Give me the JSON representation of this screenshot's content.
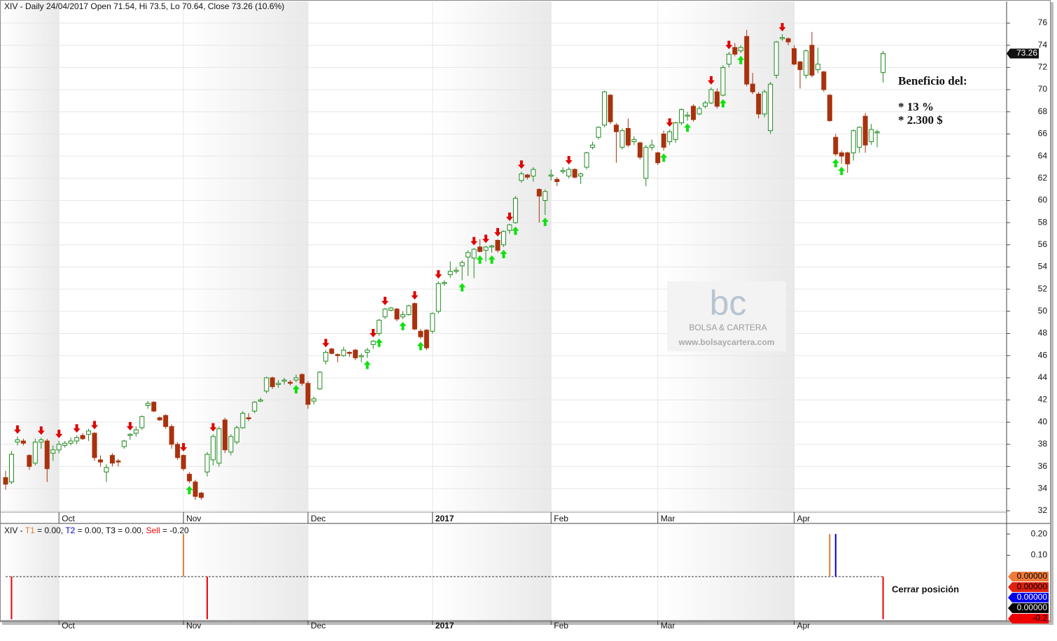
{
  "chart_data": {
    "type": "candlestick",
    "title": "XIV - Daily 24/04/2017 Open 71.54, Hi 73.5, Lo 70.64, Close 73.26 (10.6%)",
    "ylim": [
      30.86,
      77.96
    ],
    "yticks": [
      32,
      34,
      36,
      38,
      40,
      42,
      44,
      46,
      48,
      50,
      52,
      54,
      56,
      58,
      60,
      62,
      64,
      66,
      68,
      70,
      72,
      74,
      76
    ],
    "xticks": [
      {
        "value": 9,
        "label": "Oct"
      },
      {
        "value": 30,
        "label": "Nov"
      },
      {
        "value": 51,
        "label": "Dec"
      },
      {
        "value": 72,
        "label": "2017"
      },
      {
        "value": 92,
        "label": "Feb"
      },
      {
        "value": 110,
        "label": "Mar"
      },
      {
        "value": 133,
        "label": "Apr"
      }
    ],
    "grid": true,
    "up_color": "#1e8a1e",
    "down_color": "#a8320e",
    "ohlc": [
      [
        35.0,
        35.6,
        33.9,
        34.4
      ],
      [
        34.6,
        37.4,
        34.4,
        37.1
      ],
      [
        38.2,
        38.7,
        37.9,
        38.4
      ],
      [
        38.3,
        38.5,
        37.9,
        38.1
      ],
      [
        37.0,
        37.1,
        35.7,
        36.0
      ],
      [
        36.3,
        38.5,
        36.1,
        38.2
      ],
      [
        38.2,
        38.6,
        37.6,
        38.4
      ],
      [
        38.3,
        38.5,
        34.6,
        35.8
      ],
      [
        37.2,
        37.9,
        36.5,
        37.5
      ],
      [
        37.5,
        38.3,
        37.2,
        38.0
      ],
      [
        37.9,
        38.3,
        37.7,
        38.1
      ],
      [
        38.1,
        38.6,
        37.9,
        38.3
      ],
      [
        38.3,
        38.8,
        38.0,
        38.6
      ],
      [
        38.8,
        39.0,
        38.4,
        38.5
      ],
      [
        38.9,
        39.4,
        38.3,
        39.2
      ],
      [
        39.0,
        39.1,
        36.5,
        36.8
      ],
      [
        36.6,
        37.0,
        36.0,
        36.4
      ],
      [
        35.5,
        36.2,
        34.6,
        35.9
      ],
      [
        37.0,
        37.2,
        36.0,
        36.3
      ],
      [
        36.5,
        36.7,
        36.0,
        36.4
      ],
      [
        37.8,
        38.4,
        37.6,
        38.3
      ],
      [
        38.8,
        39.0,
        38.4,
        38.9
      ],
      [
        39.0,
        39.6,
        38.7,
        39.3
      ],
      [
        39.5,
        40.6,
        39.3,
        40.5
      ],
      [
        41.5,
        41.9,
        41.2,
        41.7
      ],
      [
        41.8,
        41.9,
        40.9,
        41.0
      ],
      [
        40.4,
        40.5,
        40.1,
        40.2
      ],
      [
        40.6,
        40.7,
        39.4,
        39.6
      ],
      [
        39.6,
        39.8,
        37.6,
        38.0
      ],
      [
        38.0,
        38.2,
        36.6,
        36.8
      ],
      [
        37.0,
        37.1,
        35.6,
        35.8
      ],
      [
        35.3,
        35.5,
        34.5,
        34.7
      ],
      [
        34.6,
        34.8,
        33.0,
        33.3
      ],
      [
        33.6,
        33.7,
        33.0,
        33.2
      ],
      [
        35.5,
        37.3,
        35.1,
        37.1
      ],
      [
        36.6,
        38.9,
        36.1,
        38.7
      ],
      [
        36.3,
        39.6,
        36.0,
        39.4
      ],
      [
        40.2,
        40.4,
        37.2,
        37.5
      ],
      [
        37.3,
        38.9,
        37.0,
        38.7
      ],
      [
        38.2,
        39.7,
        38.0,
        39.5
      ],
      [
        39.5,
        41.0,
        39.4,
        40.8
      ],
      [
        40.4,
        40.8,
        40.1,
        40.3
      ],
      [
        41.0,
        41.9,
        40.8,
        41.8
      ],
      [
        41.9,
        42.2,
        41.8,
        42.0
      ],
      [
        42.8,
        44.1,
        42.6,
        44.0
      ],
      [
        44.0,
        44.1,
        43.0,
        43.2
      ],
      [
        43.4,
        43.8,
        43.1,
        43.5
      ],
      [
        43.7,
        44.0,
        43.4,
        43.8
      ],
      [
        43.6,
        43.8,
        43.3,
        43.5
      ],
      [
        43.8,
        44.3,
        43.6,
        44.0
      ],
      [
        44.3,
        44.4,
        43.3,
        43.5
      ],
      [
        43.5,
        43.7,
        41.2,
        41.6
      ],
      [
        41.9,
        42.3,
        41.6,
        42.1
      ],
      [
        43.0,
        44.6,
        42.9,
        44.5
      ],
      [
        45.5,
        46.5,
        45.2,
        46.3
      ],
      [
        46.6,
        46.7,
        46.1,
        46.2
      ],
      [
        46.1,
        46.2,
        45.4,
        46.0
      ],
      [
        46.0,
        46.8,
        45.9,
        46.5
      ],
      [
        46.3,
        46.4,
        45.9,
        46.2
      ],
      [
        46.5,
        46.6,
        45.6,
        45.8
      ],
      [
        45.9,
        46.2,
        45.4,
        46.0
      ],
      [
        46.3,
        46.7,
        45.8,
        46.5
      ],
      [
        47.0,
        47.4,
        46.6,
        47.3
      ],
      [
        48.0,
        49.3,
        47.8,
        49.2
      ],
      [
        49.5,
        50.3,
        49.3,
        50.2
      ],
      [
        50.1,
        50.4,
        50.0,
        50.3
      ],
      [
        50.2,
        50.3,
        49.1,
        49.3
      ],
      [
        49.5,
        50.0,
        49.3,
        49.7
      ],
      [
        49.7,
        50.6,
        49.6,
        50.5
      ],
      [
        50.7,
        50.8,
        48.3,
        48.4
      ],
      [
        48.2,
        48.4,
        47.5,
        47.7
      ],
      [
        48.3,
        48.4,
        46.5,
        46.7
      ],
      [
        48.2,
        49.9,
        48.0,
        49.8
      ],
      [
        50.0,
        52.7,
        49.8,
        52.5
      ],
      [
        52.5,
        52.8,
        52.3,
        52.6
      ],
      [
        53.3,
        54.5,
        53.0,
        53.6
      ],
      [
        53.6,
        54.0,
        53.4,
        53.7
      ],
      [
        54.1,
        54.6,
        52.8,
        54.4
      ],
      [
        54.9,
        55.5,
        53.2,
        55.3
      ],
      [
        54.8,
        55.7,
        53.0,
        55.6
      ],
      [
        55.8,
        56.5,
        55.3,
        55.4
      ],
      [
        55.5,
        55.9,
        54.5,
        55.8
      ],
      [
        55.8,
        56.0,
        55.3,
        55.9
      ],
      [
        56.4,
        56.5,
        55.3,
        55.5
      ],
      [
        56.0,
        57.3,
        55.8,
        57.2
      ],
      [
        57.3,
        57.9,
        57.0,
        57.8
      ],
      [
        58.0,
        60.4,
        57.9,
        60.2
      ],
      [
        61.8,
        62.6,
        61.6,
        62.4
      ],
      [
        62.3,
        62.4,
        61.9,
        62.1
      ],
      [
        62.2,
        63.0,
        61.7,
        62.8
      ],
      [
        61.0,
        61.1,
        58.0,
        60.4
      ],
      [
        60.0,
        61.0,
        58.7,
        60.8
      ],
      [
        62.2,
        62.8,
        61.8,
        62.3
      ],
      [
        61.9,
        62.1,
        61.3,
        61.7
      ],
      [
        62.6,
        63.0,
        62.4,
        62.7
      ],
      [
        62.2,
        63.0,
        62.0,
        62.8
      ],
      [
        62.8,
        62.9,
        62.0,
        62.1
      ],
      [
        62.2,
        62.5,
        61.5,
        62.4
      ],
      [
        63.0,
        64.4,
        62.8,
        64.3
      ],
      [
        64.8,
        65.3,
        64.6,
        65.0
      ],
      [
        65.7,
        66.7,
        65.5,
        66.6
      ],
      [
        66.8,
        69.9,
        66.6,
        69.8
      ],
      [
        69.5,
        69.6,
        66.9,
        67.1
      ],
      [
        66.8,
        67.0,
        63.4,
        66.2
      ],
      [
        64.8,
        66.5,
        64.6,
        66.3
      ],
      [
        66.5,
        67.4,
        64.8,
        65.0
      ],
      [
        65.3,
        65.8,
        65.0,
        65.5
      ],
      [
        65.2,
        65.3,
        63.7,
        63.9
      ],
      [
        62.0,
        65.0,
        61.3,
        64.8
      ],
      [
        64.8,
        65.5,
        64.5,
        65.0
      ],
      [
        64.3,
        64.4,
        63.2,
        63.4
      ],
      [
        66.0,
        66.3,
        64.5,
        64.8
      ],
      [
        65.3,
        66.4,
        65.0,
        66.2
      ],
      [
        65.5,
        67.1,
        65.2,
        67.0
      ],
      [
        67.0,
        68.3,
        66.8,
        68.2
      ],
      [
        67.6,
        68.0,
        67.2,
        67.7
      ],
      [
        68.5,
        68.7,
        67.1,
        67.3
      ],
      [
        67.8,
        68.5,
        67.7,
        68.3
      ],
      [
        68.5,
        69.0,
        68.3,
        68.8
      ],
      [
        68.8,
        70.2,
        68.7,
        70.0
      ],
      [
        69.8,
        70.1,
        68.3,
        68.5
      ],
      [
        69.5,
        72.2,
        69.4,
        72.0
      ],
      [
        72.3,
        73.4,
        72.0,
        73.2
      ],
      [
        73.8,
        74.2,
        73.0,
        73.2
      ],
      [
        73.5,
        74.0,
        73.3,
        73.8
      ],
      [
        74.8,
        75.4,
        70.3,
        70.5
      ],
      [
        70.5,
        71.5,
        69.6,
        69.8
      ],
      [
        69.6,
        69.8,
        67.4,
        67.8
      ],
      [
        67.8,
        70.0,
        67.5,
        69.8
      ],
      [
        66.3,
        70.7,
        66.0,
        70.5
      ],
      [
        71.3,
        74.4,
        71.0,
        74.3
      ],
      [
        74.6,
        75.0,
        74.4,
        74.7
      ],
      [
        74.6,
        74.7,
        74.0,
        74.3
      ],
      [
        73.7,
        74.0,
        72.2,
        72.3
      ],
      [
        72.5,
        72.6,
        70.1,
        71.8
      ],
      [
        71.3,
        73.6,
        71.0,
        73.5
      ],
      [
        74.0,
        75.2,
        71.1,
        71.3
      ],
      [
        71.8,
        73.8,
        71.5,
        72.3
      ],
      [
        71.6,
        71.7,
        69.8,
        70.0
      ],
      [
        69.5,
        69.6,
        67.1,
        67.2
      ],
      [
        65.7,
        66.0,
        64.0,
        64.2
      ],
      [
        64.3,
        64.5,
        63.3,
        64.0
      ],
      [
        64.3,
        64.4,
        62.5,
        63.3
      ],
      [
        64.3,
        66.4,
        63.6,
        66.3
      ],
      [
        64.8,
        66.7,
        64.3,
        66.6
      ],
      [
        67.6,
        67.9,
        64.3,
        65.0
      ],
      [
        65.3,
        66.9,
        65.0,
        66.4
      ],
      [
        66.1,
        66.4,
        64.8,
        66.2
      ],
      [
        71.54,
        73.5,
        70.64,
        73.26
      ]
    ],
    "sell_arrows": [
      2,
      6,
      9,
      12,
      15,
      21,
      30,
      35,
      54,
      62,
      64,
      69,
      73,
      79,
      81,
      83,
      85,
      87,
      95,
      112,
      119,
      122,
      131
    ],
    "buy_arrows": [
      31,
      49,
      61,
      63,
      67,
      70,
      77,
      80,
      82,
      84,
      86,
      91,
      111,
      115,
      121,
      124,
      140,
      141
    ],
    "annotations": [
      "Beneficio del:",
      "* 13 %",
      "* 2.300 $"
    ],
    "watermark": {
      "logo": "bc",
      "name": "BOLSA & CARTERA",
      "url": "www.bolsaycartera.com"
    },
    "indicator": {
      "title": "XIV -",
      "ylim": [
        -0.207,
        0.243
      ],
      "yticks": [
        {
          "value": 0.2,
          "label": "0.20"
        },
        {
          "value": 0.1,
          "label": "0.10"
        }
      ],
      "series": [
        {
          "name": "T1",
          "color": "#e07b39",
          "readout": "= 0.00",
          "index": [
            30,
            139
          ],
          "values": [
            0.2,
            0.2
          ]
        },
        {
          "name": "T2",
          "color": "#0000dd",
          "readout": "= 0.00",
          "index": [
            140
          ],
          "values": [
            0.2
          ]
        },
        {
          "name": "T3",
          "color": "#000000",
          "readout": "= 0.00",
          "index": [],
          "values": []
        },
        {
          "name": "Sell",
          "color": "#ee0000",
          "readout": "= -0.20",
          "index": [
            1,
            34,
            148
          ],
          "values": [
            -0.2,
            -0.2,
            -0.2
          ]
        }
      ],
      "readout_boxes": [
        {
          "label": "0.00000",
          "color": "#f07a3a"
        },
        {
          "label": "0.00000",
          "color": "#e02010"
        },
        {
          "label": "0.00000",
          "color": "#0000ee"
        },
        {
          "label": "0.00000",
          "color": "#000000"
        },
        {
          "label": "-0.2",
          "color": "#ee0000"
        }
      ],
      "annotation": "Cerrar posición"
    }
  }
}
